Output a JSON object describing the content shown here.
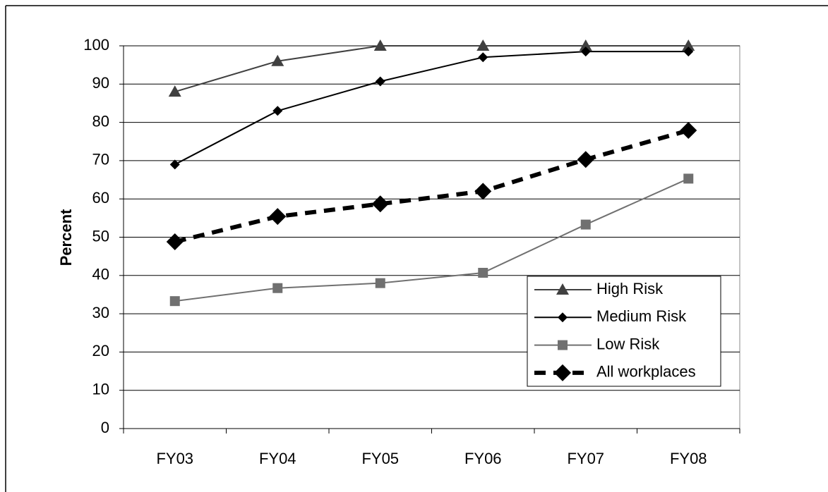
{
  "chart_data": {
    "type": "line",
    "y_label": "Percent",
    "categories": [
      "FY03",
      "FY04",
      "FY05",
      "FY06",
      "FY07",
      "FY08"
    ],
    "series": [
      {
        "name": "High Risk",
        "color": "#404040",
        "marker": "triangle",
        "line_style": "solid",
        "values": [
          88,
          96,
          100,
          100,
          100,
          100
        ]
      },
      {
        "name": "Medium Risk",
        "color": "#000000",
        "marker": "diamond",
        "line_style": "solid",
        "values": [
          69,
          83,
          90.7,
          97,
          98.5,
          98.5
        ]
      },
      {
        "name": "Low Risk",
        "color": "#707070",
        "marker": "square",
        "line_style": "solid",
        "values": [
          33.3,
          36.7,
          38,
          40.7,
          53.3,
          65.3
        ]
      },
      {
        "name": "All workplaces",
        "color": "#000000",
        "marker": "large-diamond",
        "line_style": "dashed",
        "values": [
          48.8,
          55.4,
          58.7,
          62,
          70.3,
          77.9
        ]
      }
    ],
    "ylim": [
      0,
      100
    ],
    "yticks": [
      0,
      10,
      20,
      30,
      40,
      50,
      60,
      70,
      80,
      90,
      100
    ],
    "grid": true,
    "legend": "lower-right"
  }
}
